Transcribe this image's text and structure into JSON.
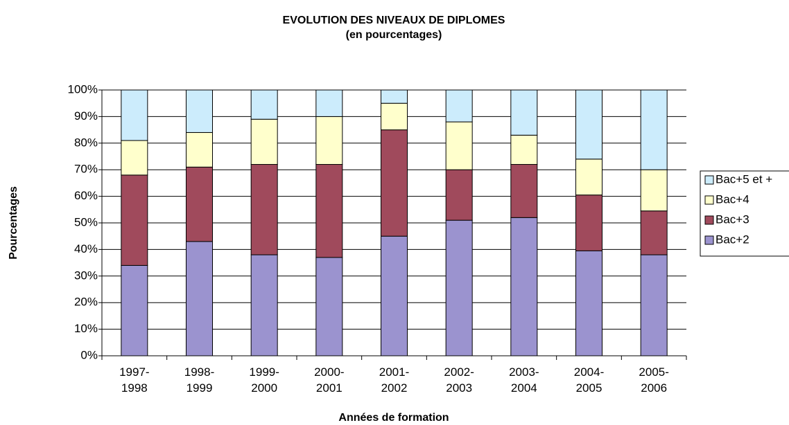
{
  "chart_data": {
    "type": "stacked_bar",
    "title": "EVOLUTION DES NIVEAUX DE DIPLOMES",
    "subtitle": "(en pourcentages)",
    "x_label": "Années de formation",
    "y_label": "Pourcentages",
    "categories": [
      "1997-\n1998",
      "1998-\n1999",
      "1999-\n2000",
      "2000-\n2001",
      "2001-\n2002",
      "2002-\n2003",
      "2003-\n2004",
      "2004-\n2005",
      "2005-\n2006"
    ],
    "series": [
      {
        "name": "Bac+2",
        "color": "#9b93cf",
        "values": [
          34,
          43,
          38,
          37,
          45,
          51,
          52,
          39.5,
          38
        ]
      },
      {
        "name": "Bac+3",
        "color": "#a04a5c",
        "values": [
          34,
          28,
          34,
          35,
          40,
          19,
          20,
          21,
          16.5
        ]
      },
      {
        "name": "Bac+4",
        "color": "#ffffcc",
        "values": [
          13,
          13,
          17,
          18,
          10,
          18,
          11,
          13.5,
          15.5
        ]
      },
      {
        "name": "Bac+5 et +",
        "color": "#ccecfc",
        "values": [
          19,
          16,
          11,
          10,
          5,
          12,
          17,
          26,
          30
        ]
      }
    ],
    "ylim": [
      0,
      100
    ],
    "yticks": [
      {
        "value": 0,
        "label": "0%"
      },
      {
        "value": 10,
        "label": "10%"
      },
      {
        "value": 20,
        "label": "20%"
      },
      {
        "value": 30,
        "label": "30%"
      },
      {
        "value": 40,
        "label": "40%"
      },
      {
        "value": 50,
        "label": "50%"
      },
      {
        "value": 60,
        "label": "60%"
      },
      {
        "value": 70,
        "label": "70%"
      },
      {
        "value": 80,
        "label": "80%"
      },
      {
        "value": 90,
        "label": "90%"
      },
      {
        "value": 100,
        "label": "100%"
      }
    ],
    "grid": true,
    "legend": "right"
  }
}
